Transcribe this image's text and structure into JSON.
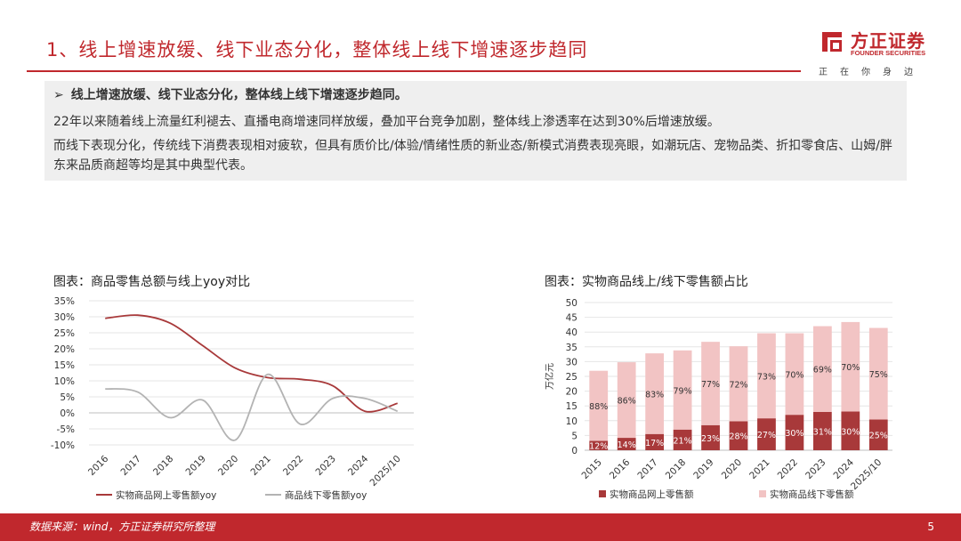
{
  "header": {
    "title": "1、线上增速放缓、线下业态分化，整体线上线下增速逐步趋同",
    "logo_cn": "方正证券",
    "logo_en": "FOUNDER SECURITIES",
    "logo_motto": "正在你身边",
    "brand_color": "#c0282d"
  },
  "summary": {
    "arrow": "➢",
    "lead": "线上增速放缓、线下业态分化，整体线上线下增速逐步趋同。",
    "p1": "22年以来随着线上流量红利褪去、直播电商增速同样放缓，叠加平台竞争加剧，整体线上渗透率在达到30%后增速放缓。",
    "p2": "而线下表现分化，传统线下消费表现相对疲软，但具有质价比/体验/情绪性质的新业态/新模式消费表现亮眼，如潮玩店、宠物品类、折扣零食店、山姆/胖东来品质商超等均是其中典型代表。"
  },
  "chart_data": [
    {
      "type": "line",
      "title": "图表：商品零售总额与线上yoy对比",
      "categories": [
        "2016",
        "2017",
        "2018",
        "2019",
        "2020",
        "2021",
        "2022",
        "2023",
        "2024",
        "2025/10"
      ],
      "y_ticks": [
        "35%",
        "30%",
        "25%",
        "20%",
        "15%",
        "10%",
        "5%",
        "0%",
        "-5%",
        "-10%"
      ],
      "ylim": [
        -10,
        35
      ],
      "y_unit": "%",
      "grid": true,
      "legend_position": "bottom",
      "series": [
        {
          "name": "实物商品网上零售额yoy",
          "color": "#a8393a",
          "values": [
            29.5,
            30.5,
            28,
            21,
            14,
            11,
            10.5,
            8.5,
            0.5,
            3
          ]
        },
        {
          "name": "商品线下零售额yoy",
          "color": "#b3b3b3",
          "values": [
            7.5,
            6.5,
            -1.5,
            4,
            -8.5,
            12,
            -3.5,
            4.5,
            4.5,
            0.5
          ]
        }
      ]
    },
    {
      "type": "bar",
      "stacked": true,
      "title": "图表：实物商品线上/线下零售额占比",
      "ylabel": "万亿元",
      "categories": [
        "2015",
        "2016",
        "2017",
        "2018",
        "2019",
        "2020",
        "2021",
        "2022",
        "2023",
        "2024",
        "2025/10"
      ],
      "y_ticks": [
        "50",
        "45",
        "40",
        "35",
        "30",
        "25",
        "20",
        "15",
        "10",
        "5",
        "0"
      ],
      "ylim": [
        0,
        50
      ],
      "grid": true,
      "legend_position": "bottom",
      "series": [
        {
          "name": "实物商品网上零售额",
          "color": "#a8393a",
          "values": [
            3.2,
            4.2,
            5.5,
            7.0,
            8.5,
            9.8,
            10.8,
            12.0,
            13.0,
            13.1,
            10.4
          ],
          "labels": [
            "12%",
            "14%",
            "17%",
            "21%",
            "23%",
            "28%",
            "27%",
            "30%",
            "31%",
            "30%",
            "25%"
          ]
        },
        {
          "name": "实物商品线下零售额",
          "color": "#f2c4c4",
          "values": [
            23.7,
            25.6,
            27.3,
            26.8,
            28.2,
            25.4,
            28.8,
            27.6,
            29.0,
            30.3,
            31.0
          ],
          "labels": [
            "88%",
            "86%",
            "83%",
            "79%",
            "77%",
            "72%",
            "73%",
            "70%",
            "69%",
            "70%",
            "75%"
          ]
        }
      ]
    }
  ],
  "footer": {
    "source": "数据来源：wind，方正证券研究所整理",
    "page": "5"
  }
}
